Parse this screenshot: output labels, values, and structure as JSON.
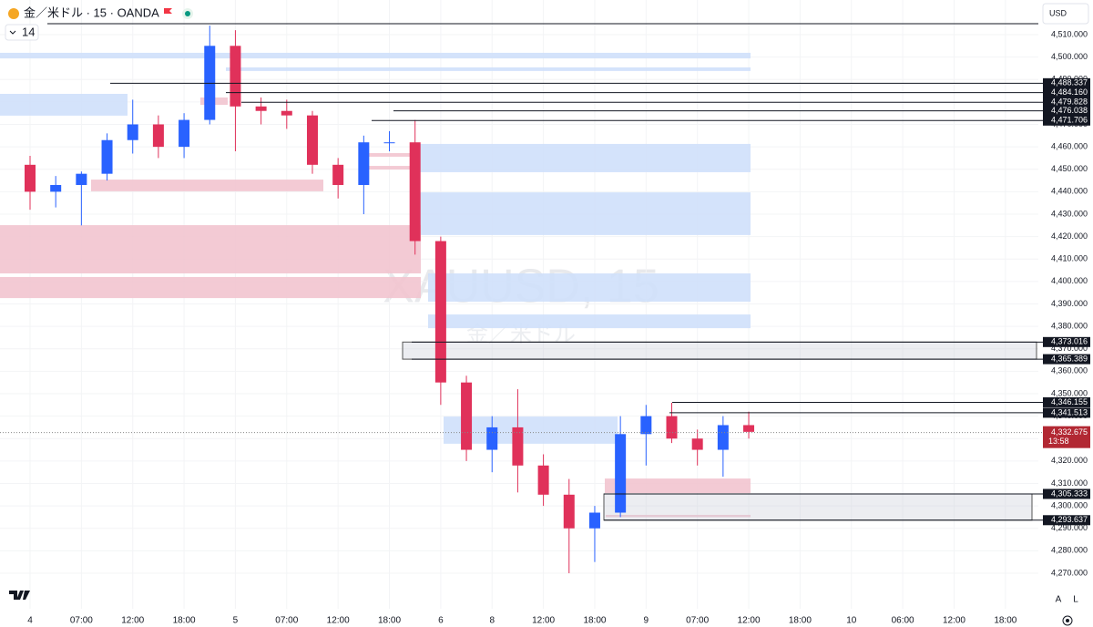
{
  "chart_data": {
    "type": "candlestick",
    "title": "金／米ドル · 15 · OANDA",
    "indicator_length": "14",
    "currency": "USD",
    "watermark": [
      "XAUUSD, 15",
      "金／米ドル"
    ],
    "scale_buttons": [
      "A",
      "L"
    ],
    "categories": [
      "4",
      null,
      "07:00",
      null,
      "12:00",
      null,
      "18:00",
      null,
      "5",
      null,
      "07:00",
      null,
      "12:00",
      null,
      "18:00",
      null,
      "6",
      null,
      "8",
      null,
      "12:00",
      null,
      "18:00",
      null,
      "9",
      null,
      "07:00",
      null,
      "12:00",
      null,
      "18:00",
      null,
      "10",
      null,
      "06:00",
      null,
      "12:00",
      null,
      "18:00",
      null
    ],
    "open": [
      4452,
      4440,
      4443,
      4448,
      4463,
      4470,
      4460,
      4472,
      4505,
      4478,
      4476,
      4474,
      4452,
      4443,
      4462,
      4462,
      4418,
      4355,
      4325,
      4335,
      4318,
      4305,
      4290,
      4297,
      4332,
      4340,
      4330,
      4325,
      4336,
      null,
      null,
      null,
      null,
      null,
      null,
      null,
      null,
      null,
      null,
      null
    ],
    "high": [
      4456,
      4447,
      4449,
      4466,
      4481,
      4474,
      4475,
      4514,
      4512,
      4482,
      4481,
      4476,
      4455,
      4465,
      4467,
      4472,
      4420,
      4358,
      4340,
      4352,
      4323,
      4312,
      4300,
      4340,
      4345,
      4346,
      4334,
      4340,
      4342,
      null,
      null,
      null,
      null,
      null,
      null,
      null,
      null,
      null,
      null,
      null
    ],
    "low": [
      4432,
      4433,
      4425,
      4445,
      4457,
      4455,
      4455,
      4470,
      4458,
      4470,
      4468,
      4448,
      4437,
      4430,
      4458,
      4412,
      4345,
      4320,
      4315,
      4306,
      4300,
      4270,
      4275,
      4295,
      4318,
      4328,
      4318,
      4313,
      4330,
      null,
      null,
      null,
      null,
      null,
      null,
      null,
      null,
      null,
      null,
      null
    ],
    "close": [
      4440,
      4443,
      4448,
      4463,
      4470,
      4460,
      4472,
      4505,
      4478,
      4476,
      4474,
      4452,
      4443,
      4462,
      4462,
      4418,
      4355,
      4325,
      4335,
      4318,
      4305,
      4290,
      4297,
      4332,
      4340,
      4330,
      4325,
      4336,
      4333,
      null,
      null,
      null,
      null,
      null,
      null,
      null,
      null,
      null,
      null,
      null
    ],
    "up_color": "#2962ff",
    "down_color": "#e0315a",
    "ylim": [
      4254.16,
      4525.43
    ],
    "yticks": [
      {
        "value": 4270,
        "label": "4,270.000"
      },
      {
        "value": 4280,
        "label": "4,280.000"
      },
      {
        "value": 4290,
        "label": "4,290.000"
      },
      {
        "value": 4300,
        "label": "4,300.000"
      },
      {
        "value": 4310,
        "label": "4,310.000"
      },
      {
        "value": 4320,
        "label": "4,320.000"
      },
      {
        "value": 4330,
        "label": "4,330.000"
      },
      {
        "value": 4340,
        "label": "4,340.000"
      },
      {
        "value": 4350,
        "label": "4,350.000"
      },
      {
        "value": 4360,
        "label": "4,360.000"
      },
      {
        "value": 4370,
        "label": "4,370.000"
      },
      {
        "value": 4380,
        "label": "4,380.000"
      },
      {
        "value": 4390,
        "label": "4,390.000"
      },
      {
        "value": 4400,
        "label": "4,400.000"
      },
      {
        "value": 4410,
        "label": "4,410.000"
      },
      {
        "value": 4420,
        "label": "4,420.000"
      },
      {
        "value": 4430,
        "label": "4,430.000"
      },
      {
        "value": 4440,
        "label": "4,440.000"
      },
      {
        "value": 4450,
        "label": "4,450.000"
      },
      {
        "value": 4460,
        "label": "4,460.000"
      },
      {
        "value": 4470,
        "label": "4,470.000"
      },
      {
        "value": 4480,
        "label": "4,480.000"
      },
      {
        "value": 4490,
        "label": "4,490.000"
      },
      {
        "value": 4500,
        "label": "4,500.000"
      },
      {
        "value": 4510,
        "label": "4,510.000"
      }
    ],
    "levels": [
      {
        "value": 4488.337,
        "label": "4,488.337"
      },
      {
        "value": 4484.16,
        "label": "4,484.160"
      },
      {
        "value": 4479.828,
        "label": "4,479.828"
      },
      {
        "value": 4476.038,
        "label": "4,476.038"
      },
      {
        "value": 4471.706,
        "label": "4,471.706"
      },
      {
        "value": 4373.016,
        "label": "4,373.016"
      },
      {
        "value": 4365.389,
        "label": "4,365.389"
      },
      {
        "value": 4346.155,
        "label": "4,346.155"
      },
      {
        "value": 4341.513,
        "label": "4,341.513"
      },
      {
        "value": 4305.333,
        "label": "4,305.333"
      },
      {
        "value": 4293.637,
        "label": "4,293.637"
      }
    ],
    "current_price": {
      "value": 4332.675,
      "label": "4,332.675"
    },
    "countdown": "13:58",
    "zones": [
      {
        "low": 4499.4,
        "high": 4501.9,
        "color": "#cfe0fb"
      },
      {
        "low": 4493.8,
        "high": 4495.4,
        "color": "#cfe0fb"
      },
      {
        "low": 4473.9,
        "high": 4483.6,
        "color": "#cfe0fb"
      },
      {
        "low": 4448.7,
        "high": 4461.3,
        "color": "#cfe0fb"
      },
      {
        "low": 4420.7,
        "high": 4439.7,
        "color": "#cfe0fb"
      },
      {
        "low": 4391.0,
        "high": 4403.6,
        "color": "#cfe0fb"
      },
      {
        "low": 4379.2,
        "high": 4385.3,
        "color": "#cfe0fb"
      },
      {
        "low": 4327.7,
        "high": 4339.8,
        "color": "#cfe0fb"
      },
      {
        "low": 4403.6,
        "high": 4425.1,
        "color": "#f2c4cf"
      },
      {
        "low": 4392.6,
        "high": 4402.0,
        "color": "#f2c4cf"
      },
      {
        "low": 4440.2,
        "high": 4445.4,
        "color": "#f2c4cf"
      },
      {
        "low": 4478.7,
        "high": 4482.0,
        "color": "#f2c4cf"
      },
      {
        "low": 4305.7,
        "high": 4312.2,
        "color": "#f2c4cf"
      },
      {
        "low": 4455.6,
        "high": 4457.2,
        "color": "#f2c4cf"
      },
      {
        "low": 4449.9,
        "high": 4451.5,
        "color": "#f2c4cf"
      },
      {
        "low": 4295.0,
        "high": 4296.0,
        "color": "#f2c4cf"
      }
    ]
  }
}
